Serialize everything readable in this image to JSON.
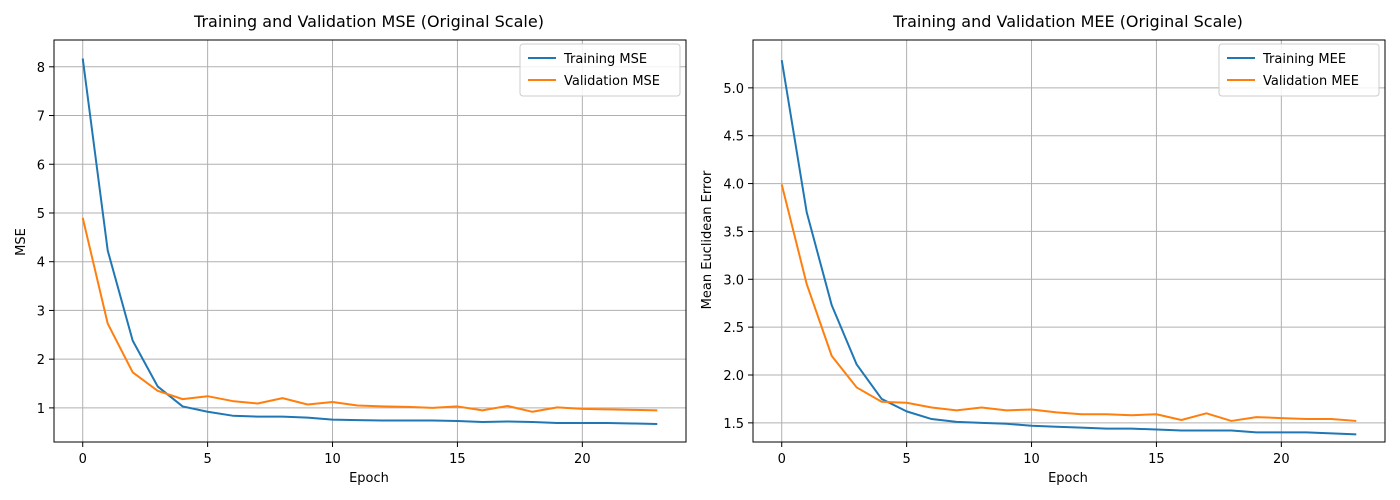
{
  "chart_data": [
    {
      "type": "line",
      "title": "Training and Validation MSE (Original Scale)",
      "xlabel": "Epoch",
      "ylabel": "MSE",
      "xlim": [
        -1.15,
        24.15
      ],
      "ylim": [
        0.3,
        8.55
      ],
      "xticks": [
        0,
        5,
        10,
        15,
        20
      ],
      "yticks": [
        1,
        2,
        3,
        4,
        5,
        6,
        7,
        8
      ],
      "ytick_format": "int",
      "grid": true,
      "legend_position": "top-right",
      "x": [
        0,
        1,
        2,
        3,
        4,
        5,
        6,
        7,
        8,
        9,
        10,
        11,
        12,
        13,
        14,
        15,
        16,
        17,
        18,
        19,
        20,
        21,
        22,
        23
      ],
      "series": [
        {
          "name": "Training MSE",
          "color": "#1f77b4",
          "values": [
            8.17,
            4.23,
            2.38,
            1.44,
            1.03,
            0.92,
            0.84,
            0.82,
            0.82,
            0.8,
            0.76,
            0.75,
            0.74,
            0.74,
            0.74,
            0.73,
            0.71,
            0.72,
            0.71,
            0.69,
            0.69,
            0.69,
            0.68,
            0.67
          ]
        },
        {
          "name": "Validation MSE",
          "color": "#ff7f0e",
          "values": [
            4.9,
            2.73,
            1.73,
            1.35,
            1.18,
            1.24,
            1.14,
            1.09,
            1.2,
            1.07,
            1.12,
            1.05,
            1.03,
            1.02,
            1.0,
            1.03,
            0.95,
            1.04,
            0.92,
            1.01,
            0.98,
            0.97,
            0.96,
            0.95
          ]
        }
      ]
    },
    {
      "type": "line",
      "title": "Training and Validation MEE (Original Scale)",
      "xlabel": "Epoch",
      "ylabel": "Mean Euclidean Error",
      "xlim": [
        -1.15,
        24.15
      ],
      "ylim": [
        1.3,
        5.5
      ],
      "xticks": [
        0,
        5,
        10,
        15,
        20
      ],
      "yticks": [
        1.5,
        2.0,
        2.5,
        3.0,
        3.5,
        4.0,
        4.5,
        5.0
      ],
      "ytick_format": "1dp",
      "grid": true,
      "legend_position": "top-right",
      "x": [
        0,
        1,
        2,
        3,
        4,
        5,
        6,
        7,
        8,
        9,
        10,
        11,
        12,
        13,
        14,
        15,
        16,
        17,
        18,
        19,
        20,
        21,
        22,
        23
      ],
      "series": [
        {
          "name": "Training MEE",
          "color": "#1f77b4",
          "values": [
            5.29,
            3.7,
            2.73,
            2.11,
            1.75,
            1.62,
            1.54,
            1.51,
            1.5,
            1.49,
            1.47,
            1.46,
            1.45,
            1.44,
            1.44,
            1.43,
            1.42,
            1.42,
            1.42,
            1.4,
            1.4,
            1.4,
            1.39,
            1.38
          ]
        },
        {
          "name": "Validation MEE",
          "color": "#ff7f0e",
          "values": [
            3.99,
            2.95,
            2.2,
            1.87,
            1.72,
            1.71,
            1.66,
            1.63,
            1.66,
            1.63,
            1.64,
            1.61,
            1.59,
            1.59,
            1.58,
            1.59,
            1.53,
            1.6,
            1.52,
            1.56,
            1.55,
            1.54,
            1.54,
            1.52
          ]
        }
      ]
    }
  ]
}
